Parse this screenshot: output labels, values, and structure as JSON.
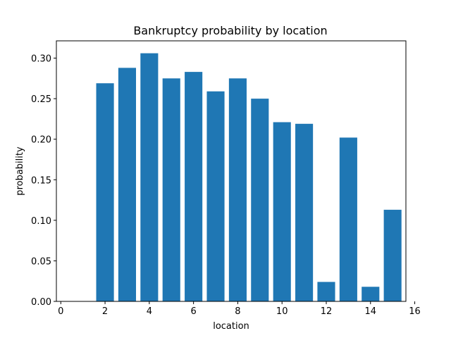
{
  "chart_data": {
    "type": "bar",
    "title": "Bankruptcy probability by location",
    "xlabel": "location",
    "ylabel": "probability",
    "x": [
      2,
      3,
      4,
      5,
      6,
      7,
      8,
      9,
      10,
      11,
      12,
      13,
      14,
      15
    ],
    "values": [
      0.269,
      0.288,
      0.306,
      0.275,
      0.283,
      0.259,
      0.275,
      0.25,
      0.221,
      0.219,
      0.024,
      0.202,
      0.018,
      0.113
    ],
    "xlim": [
      -0.2,
      15.6
    ],
    "ylim": [
      0,
      0.3213
    ],
    "xticks": [
      "0",
      "2",
      "4",
      "6",
      "8",
      "10",
      "12",
      "14",
      "16"
    ],
    "xtick_values": [
      0,
      2,
      4,
      6,
      8,
      10,
      12,
      14,
      16
    ],
    "yticks": [
      "0.00",
      "0.05",
      "0.10",
      "0.15",
      "0.20",
      "0.25",
      "0.30"
    ],
    "ytick_values": [
      0,
      0.05,
      0.1,
      0.15,
      0.2,
      0.25,
      0.3
    ],
    "bar_width": 0.8,
    "bar_color": "#1f77b4",
    "grid": false,
    "legend": "none"
  }
}
